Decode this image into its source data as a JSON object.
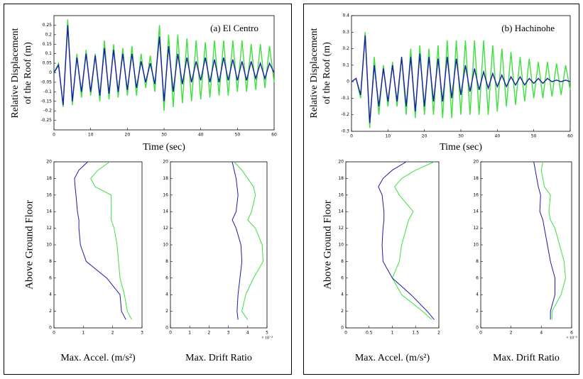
{
  "chart_data": [
    {
      "type": "line",
      "annotation": "(a) El Centro",
      "ylabel": [
        "Relative Displacement",
        "of the Roof (m)"
      ],
      "xlabel": "Time (sec)",
      "x": [
        0,
        1.25,
        2.5,
        3.75,
        5,
        6.25,
        7.5,
        8.75,
        10,
        11.25,
        12.5,
        13.75,
        15,
        16.25,
        17.5,
        18.75,
        20,
        21.25,
        22.5,
        23.75,
        25,
        26.25,
        27.5,
        28.75,
        30,
        31.25,
        32.5,
        33.75,
        35,
        36.25,
        37.5,
        38.75,
        40,
        41.25,
        42.5,
        43.75,
        45,
        46.25,
        47.5,
        48.75,
        50,
        51.25,
        52.5,
        53.75,
        55,
        56.25,
        57.5,
        58.75,
        60
      ],
      "series": [
        {
          "color": "#3ee03e",
          "values": [
            0,
            0.05,
            -0.18,
            0.28,
            -0.17,
            0.1,
            -0.13,
            0.12,
            -0.12,
            0.1,
            -0.15,
            0.17,
            -0.14,
            0.15,
            -0.13,
            0.13,
            -0.12,
            0.14,
            -0.12,
            0.1,
            -0.08,
            0.09,
            -0.1,
            0.25,
            -0.2,
            0.2,
            -0.18,
            0.2,
            -0.16,
            0.18,
            -0.15,
            0.17,
            -0.14,
            0.16,
            -0.13,
            0.17,
            -0.12,
            0.17,
            -0.12,
            0.17,
            -0.1,
            0.17,
            -0.1,
            0.15,
            -0.09,
            0.15,
            -0.08,
            0.14,
            -0.05
          ]
        },
        {
          "color": "#1c1ca8",
          "values": [
            0,
            0.04,
            -0.17,
            0.25,
            -0.15,
            0.08,
            -0.1,
            0.1,
            -0.1,
            0.09,
            -0.12,
            0.13,
            -0.11,
            0.12,
            -0.1,
            0.1,
            -0.09,
            0.1,
            -0.08,
            0.06,
            -0.05,
            0.05,
            -0.06,
            0.19,
            -0.15,
            0.14,
            -0.1,
            0.1,
            -0.06,
            0.08,
            -0.05,
            0.06,
            -0.04,
            0.08,
            -0.05,
            0.07,
            -0.05,
            0.08,
            -0.04,
            0.07,
            -0.04,
            0.06,
            -0.04,
            0.06,
            -0.03,
            0.05,
            -0.03,
            0.05,
            0
          ]
        }
      ],
      "xlim": [
        0,
        60
      ],
      "xticks": [
        0,
        10,
        20,
        30,
        40,
        50,
        60
      ],
      "ylim": [
        -0.3,
        0.3
      ],
      "yticks": [
        -0.25,
        -0.2,
        -0.15,
        -0.1,
        -0.05,
        0,
        0.05,
        0.1,
        0.15,
        0.2,
        0.25
      ]
    },
    {
      "type": "line",
      "annotation": "(b) Hachinohe",
      "ylabel": [
        "Relative Displacement",
        "of the Roof (m)"
      ],
      "xlabel": "Time (sec)",
      "x": [
        0,
        1.25,
        2.5,
        3.75,
        5,
        6.25,
        7.5,
        8.75,
        10,
        11.25,
        12.5,
        13.75,
        15,
        16.25,
        17.5,
        18.75,
        20,
        21.25,
        22.5,
        23.75,
        25,
        26.25,
        27.5,
        28.75,
        30,
        31.25,
        32.5,
        33.75,
        35,
        36.25,
        37.5,
        38.75,
        40,
        41.25,
        42.5,
        43.75,
        45,
        46.25,
        47.5,
        48.75,
        50,
        51.25,
        52.5,
        53.75,
        55,
        56.25,
        57.5,
        58.75,
        60
      ],
      "series": [
        {
          "color": "#3ee03e",
          "values": [
            0,
            0.02,
            -0.1,
            0.3,
            -0.28,
            0.15,
            -0.2,
            0.1,
            -0.15,
            0.12,
            -0.15,
            0.15,
            -0.2,
            0.2,
            -0.22,
            0.22,
            -0.2,
            0.2,
            -0.2,
            0.22,
            -0.22,
            0.25,
            -0.22,
            0.25,
            -0.2,
            0.25,
            -0.2,
            0.25,
            -0.2,
            0.25,
            -0.2,
            0.22,
            -0.18,
            0.2,
            -0.15,
            0.18,
            -0.14,
            0.15,
            -0.12,
            0.14,
            -0.1,
            0.12,
            -0.1,
            0.12,
            -0.09,
            0.11,
            -0.08,
            0.1,
            -0.05
          ]
        },
        {
          "color": "#1c1ca8",
          "values": [
            0,
            0.02,
            -0.08,
            0.28,
            -0.25,
            0.1,
            -0.15,
            0.08,
            -0.12,
            0.1,
            -0.12,
            0.15,
            -0.15,
            0.15,
            -0.18,
            0.17,
            -0.15,
            0.15,
            -0.12,
            0.14,
            -0.12,
            0.15,
            -0.1,
            0.14,
            -0.08,
            0.1,
            -0.06,
            0.08,
            -0.05,
            0.06,
            -0.04,
            0.05,
            -0.03,
            0.04,
            -0.03,
            0.03,
            -0.02,
            0.03,
            -0.02,
            0.02,
            -0.01,
            0.02,
            -0.01,
            0.02,
            0,
            0.01,
            0,
            0.01,
            0
          ]
        }
      ],
      "xlim": [
        0,
        60
      ],
      "xticks": [
        0,
        10,
        20,
        30,
        40,
        50,
        60
      ],
      "ylim": [
        -0.3,
        0.4
      ],
      "yticks": [
        -0.3,
        -0.2,
        -0.1,
        0,
        0.1,
        0.2,
        0.3,
        0.4
      ]
    },
    {
      "type": "profile",
      "ylabel": "Above Ground Floor",
      "xlabel": "Max. Accel. (m/s²)",
      "y": [
        1,
        2,
        4,
        6,
        8,
        10,
        12,
        13,
        14,
        16,
        17,
        18,
        19,
        20
      ],
      "series": [
        {
          "color": "#3ee03e",
          "values": [
            2.65,
            2.5,
            2.4,
            2.25,
            2.2,
            2.15,
            2.05,
            1.95,
            1.95,
            1.95,
            1.4,
            1.25,
            1.5,
            1.9
          ]
        },
        {
          "color": "#1c1ca8",
          "values": [
            2.45,
            2.3,
            2.25,
            1.8,
            1.1,
            0.9,
            0.85,
            0.85,
            0.8,
            0.75,
            0.72,
            0.7,
            0.85,
            1.15
          ]
        }
      ],
      "xlim": [
        0,
        3
      ],
      "xticks": [
        0,
        1,
        2,
        3
      ],
      "ylim": [
        0,
        20
      ],
      "yticks": [
        0,
        2,
        4,
        6,
        8,
        10,
        12,
        14,
        16,
        18,
        20
      ]
    },
    {
      "type": "profile",
      "xlabel": "Max. Drift Ratio",
      "xscale_label": "× 10⁻³",
      "y": [
        1,
        2,
        4,
        6,
        8,
        10,
        12,
        13,
        14,
        16,
        17,
        18,
        19,
        20
      ],
      "series": [
        {
          "color": "#3ee03e",
          "values": [
            4.0,
            3.7,
            3.9,
            4.3,
            4.8,
            4.75,
            4.4,
            4.0,
            4.2,
            4.4,
            4.3,
            4.0,
            3.7,
            3.3
          ]
        },
        {
          "color": "#1c1ca8",
          "values": [
            3.5,
            3.45,
            3.5,
            3.6,
            3.7,
            3.65,
            3.4,
            3.2,
            3.4,
            3.5,
            3.45,
            3.4,
            3.3,
            3.2
          ]
        }
      ],
      "xlim": [
        0,
        5
      ],
      "xticks": [
        0,
        1,
        2,
        3,
        4,
        5
      ],
      "ylim": [
        0,
        20
      ],
      "yticks": [
        0,
        2,
        4,
        6,
        8,
        10,
        12,
        14,
        16,
        18,
        20
      ]
    },
    {
      "type": "profile",
      "ylabel": "Above Ground Floor",
      "xlabel": "Max. Accel. (m/s²)",
      "y": [
        1,
        2,
        4,
        6,
        8,
        10,
        12,
        13,
        14,
        16,
        17,
        18,
        19,
        20
      ],
      "series": [
        {
          "color": "#3ee03e",
          "values": [
            1.85,
            1.65,
            1.2,
            1.0,
            1.15,
            1.2,
            1.3,
            1.35,
            1.45,
            1.15,
            1.05,
            1.2,
            1.5,
            1.9
          ]
        },
        {
          "color": "#1c1ca8",
          "values": [
            1.9,
            1.75,
            1.4,
            1.0,
            0.8,
            0.78,
            0.8,
            0.82,
            0.82,
            0.78,
            0.7,
            0.8,
            1.0,
            1.3
          ]
        }
      ],
      "xlim": [
        0,
        2
      ],
      "xticks": [
        0,
        0.5,
        1,
        1.5,
        2
      ],
      "ylim": [
        0,
        20
      ],
      "yticks": [
        0,
        2,
        4,
        6,
        8,
        10,
        12,
        14,
        16,
        18,
        20
      ]
    },
    {
      "type": "profile",
      "xlabel": "Max. Drift Ratio",
      "xscale_label": "× 10⁻³",
      "y": [
        1,
        2,
        4,
        6,
        8,
        10,
        12,
        13,
        14,
        16,
        17,
        18,
        19,
        20
      ],
      "series": [
        {
          "color": "#3ee03e",
          "values": [
            4.7,
            4.7,
            5.3,
            5.6,
            5.5,
            5.2,
            4.9,
            4.6,
            4.5,
            4.6,
            4.2,
            4.1,
            4.0,
            4.1
          ]
        },
        {
          "color": "#1c1ca8",
          "values": [
            4.6,
            4.6,
            4.9,
            4.9,
            4.6,
            4.4,
            4.2,
            4.1,
            3.9,
            3.95,
            3.8,
            3.7,
            3.6,
            3.5
          ]
        }
      ],
      "xlim": [
        0,
        6
      ],
      "xticks": [
        0,
        2,
        4,
        6
      ],
      "ylim": [
        0,
        20
      ],
      "yticks": [
        0,
        2,
        4,
        6,
        8,
        10,
        12,
        14,
        16,
        18,
        20
      ]
    }
  ]
}
